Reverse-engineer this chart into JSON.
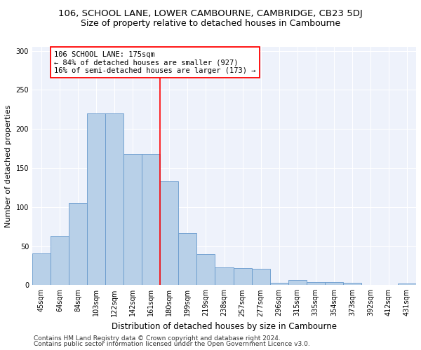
{
  "title_line1": "106, SCHOOL LANE, LOWER CAMBOURNE, CAMBRIDGE, CB23 5DJ",
  "title_line2": "Size of property relative to detached houses in Cambourne",
  "xlabel": "Distribution of detached houses by size in Cambourne",
  "ylabel": "Number of detached properties",
  "categories": [
    "45sqm",
    "64sqm",
    "84sqm",
    "103sqm",
    "122sqm",
    "142sqm",
    "161sqm",
    "180sqm",
    "199sqm",
    "219sqm",
    "238sqm",
    "257sqm",
    "277sqm",
    "296sqm",
    "315sqm",
    "335sqm",
    "354sqm",
    "373sqm",
    "392sqm",
    "412sqm",
    "431sqm"
  ],
  "values": [
    41,
    63,
    105,
    220,
    220,
    168,
    168,
    133,
    67,
    40,
    23,
    22,
    21,
    3,
    7,
    4,
    4,
    3,
    0,
    0,
    2
  ],
  "bar_color": "#b8d0e8",
  "bar_edge_color": "#6699cc",
  "vline_color": "red",
  "annotation_text": "106 SCHOOL LANE: 175sqm\n← 84% of detached houses are smaller (927)\n16% of semi-detached houses are larger (173) →",
  "annotation_box_color": "white",
  "annotation_box_edgecolor": "red",
  "ylim": [
    0,
    305
  ],
  "yticks": [
    0,
    50,
    100,
    150,
    200,
    250,
    300
  ],
  "background_color": "#eef2fb",
  "footer_line1": "Contains HM Land Registry data © Crown copyright and database right 2024.",
  "footer_line2": "Contains public sector information licensed under the Open Government Licence v3.0.",
  "title_fontsize": 9.5,
  "subtitle_fontsize": 9,
  "xlabel_fontsize": 8.5,
  "ylabel_fontsize": 8,
  "tick_fontsize": 7,
  "footer_fontsize": 6.5,
  "annot_fontsize": 7.5
}
